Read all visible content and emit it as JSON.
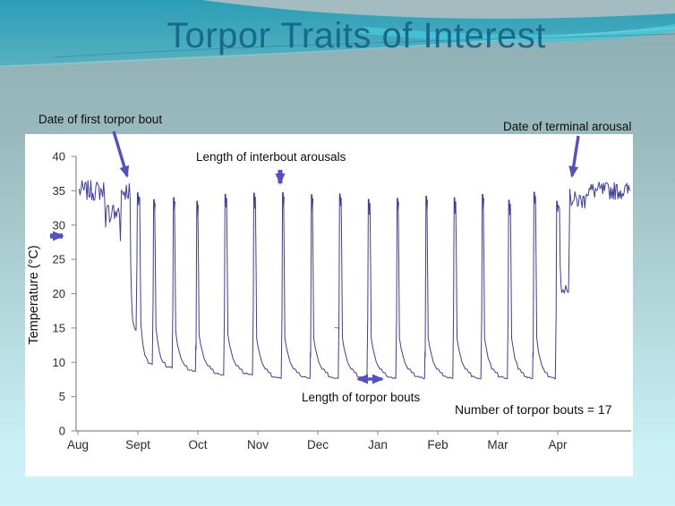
{
  "slide": {
    "title": "Torpor Traits of Interest",
    "title_color": "#19698d",
    "background_accent_teal": "#2f9fb6",
    "background_accent_cyan": "#46c5d8"
  },
  "annotations": {
    "first_bout": "Date of first torpor bout",
    "interbout": "Length of interbout arousals",
    "terminal": "Date of terminal arousal",
    "bout_length": "Length of torpor bouts",
    "bout_count": "Number of torpor bouts = 17",
    "partial_mark": "~"
  },
  "chart_data": {
    "type": "line",
    "title": "",
    "xlabel": "",
    "ylabel": "Temperature (°C)",
    "x_tick_labels": [
      "Aug",
      "Sept",
      "Oct",
      "Nov",
      "Dec",
      "Jan",
      "Feb",
      "Mar",
      "Apr"
    ],
    "y_ticks": [
      0,
      5,
      10,
      15,
      20,
      25,
      30,
      35,
      40
    ],
    "ylim": [
      0,
      40
    ],
    "grid": false,
    "legend": false,
    "colors": {
      "series": "#3d3da0",
      "arrows": "#5551c5",
      "axis": "#8a8a8a"
    },
    "euthermic_temp_c": 35,
    "torpor_min_temp_c": 8,
    "interbout_arousal_peak_c": 34,
    "number_of_torpor_bouts": 17,
    "pre_hibernation": {
      "start_month": 0.02,
      "end_month": 0.87,
      "mean_temp_c": 35
    },
    "bouts": [
      {
        "start_month": 0.87,
        "end_month": 0.97,
        "min_temp_c": 15
      },
      {
        "start_month": 1.03,
        "end_month": 1.24,
        "min_temp_c": 10
      },
      {
        "start_month": 1.28,
        "end_month": 1.57,
        "min_temp_c": 9.5
      },
      {
        "start_month": 1.61,
        "end_month": 1.96,
        "min_temp_c": 9
      },
      {
        "start_month": 2.0,
        "end_month": 2.43,
        "min_temp_c": 8.5
      },
      {
        "start_month": 2.48,
        "end_month": 2.91,
        "min_temp_c": 8.5
      },
      {
        "start_month": 2.96,
        "end_month": 3.39,
        "min_temp_c": 8
      },
      {
        "start_month": 3.43,
        "end_month": 3.87,
        "min_temp_c": 8
      },
      {
        "start_month": 3.91,
        "end_month": 4.34,
        "min_temp_c": 8
      },
      {
        "start_month": 4.39,
        "end_month": 4.82,
        "min_temp_c": 8
      },
      {
        "start_month": 4.87,
        "end_month": 5.3,
        "min_temp_c": 8
      },
      {
        "start_month": 5.34,
        "end_month": 5.78,
        "min_temp_c": 8
      },
      {
        "start_month": 5.82,
        "end_month": 6.25,
        "min_temp_c": 8
      },
      {
        "start_month": 6.3,
        "end_month": 6.72,
        "min_temp_c": 8
      },
      {
        "start_month": 6.76,
        "end_month": 7.16,
        "min_temp_c": 8
      },
      {
        "start_month": 7.21,
        "end_month": 7.58,
        "min_temp_c": 8
      },
      {
        "start_month": 7.63,
        "end_month": 7.96,
        "min_temp_c": 8
      }
    ],
    "pre_terminal_dip": {
      "start_month": 8.03,
      "end_month": 8.18,
      "min_temp_c": 20
    },
    "post_hibernation": {
      "start_month": 8.2,
      "end_month": 9.22,
      "mean_temp_c": 35
    }
  }
}
